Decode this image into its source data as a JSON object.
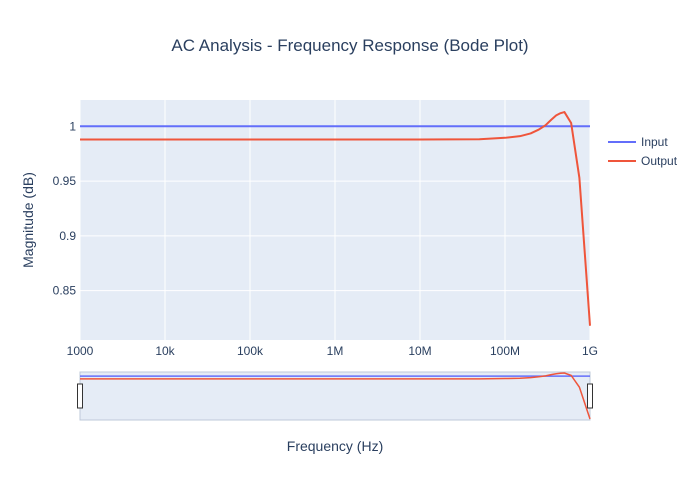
{
  "chart_data": {
    "type": "line",
    "title": "AC Analysis - Frequency Response (Bode Plot)",
    "xlabel": "Frequency (Hz)",
    "ylabel": "Magnitude (dB)",
    "x_scale": "log",
    "xlim": [
      1000,
      1000000000
    ],
    "ylim": [
      0.805,
      1.024
    ],
    "x_ticks": [
      {
        "value": 1000,
        "label": "1000"
      },
      {
        "value": 10000,
        "label": "10k"
      },
      {
        "value": 100000,
        "label": "100k"
      },
      {
        "value": 1000000,
        "label": "1M"
      },
      {
        "value": 10000000,
        "label": "10M"
      },
      {
        "value": 100000000,
        "label": "100M"
      },
      {
        "value": 1000000000,
        "label": "1G"
      }
    ],
    "y_ticks": [
      {
        "value": 0.85,
        "label": "0.85"
      },
      {
        "value": 0.9,
        "label": "0.9"
      },
      {
        "value": 0.95,
        "label": "0.95"
      },
      {
        "value": 1,
        "label": "1"
      }
    ],
    "grid": true,
    "legend_position": "top-right",
    "range_slider": true,
    "series": [
      {
        "name": "Input",
        "color": "#636efa",
        "x": [
          1000,
          1000000000
        ],
        "y": [
          1.0,
          1.0
        ]
      },
      {
        "name": "Output",
        "color": "#ef553b",
        "x": [
          1000,
          10000,
          100000,
          1000000,
          10000000,
          50000000,
          100000000,
          150000000,
          200000000,
          250000000,
          300000000,
          350000000,
          400000000,
          450000000,
          500000000,
          600000000,
          750000000,
          1000000000
        ],
        "y": [
          0.988,
          0.988,
          0.988,
          0.988,
          0.988,
          0.9882,
          0.9895,
          0.991,
          0.9935,
          0.997,
          1.001,
          1.006,
          1.01,
          1.012,
          1.013,
          1.003,
          0.953,
          0.818
        ]
      }
    ]
  }
}
